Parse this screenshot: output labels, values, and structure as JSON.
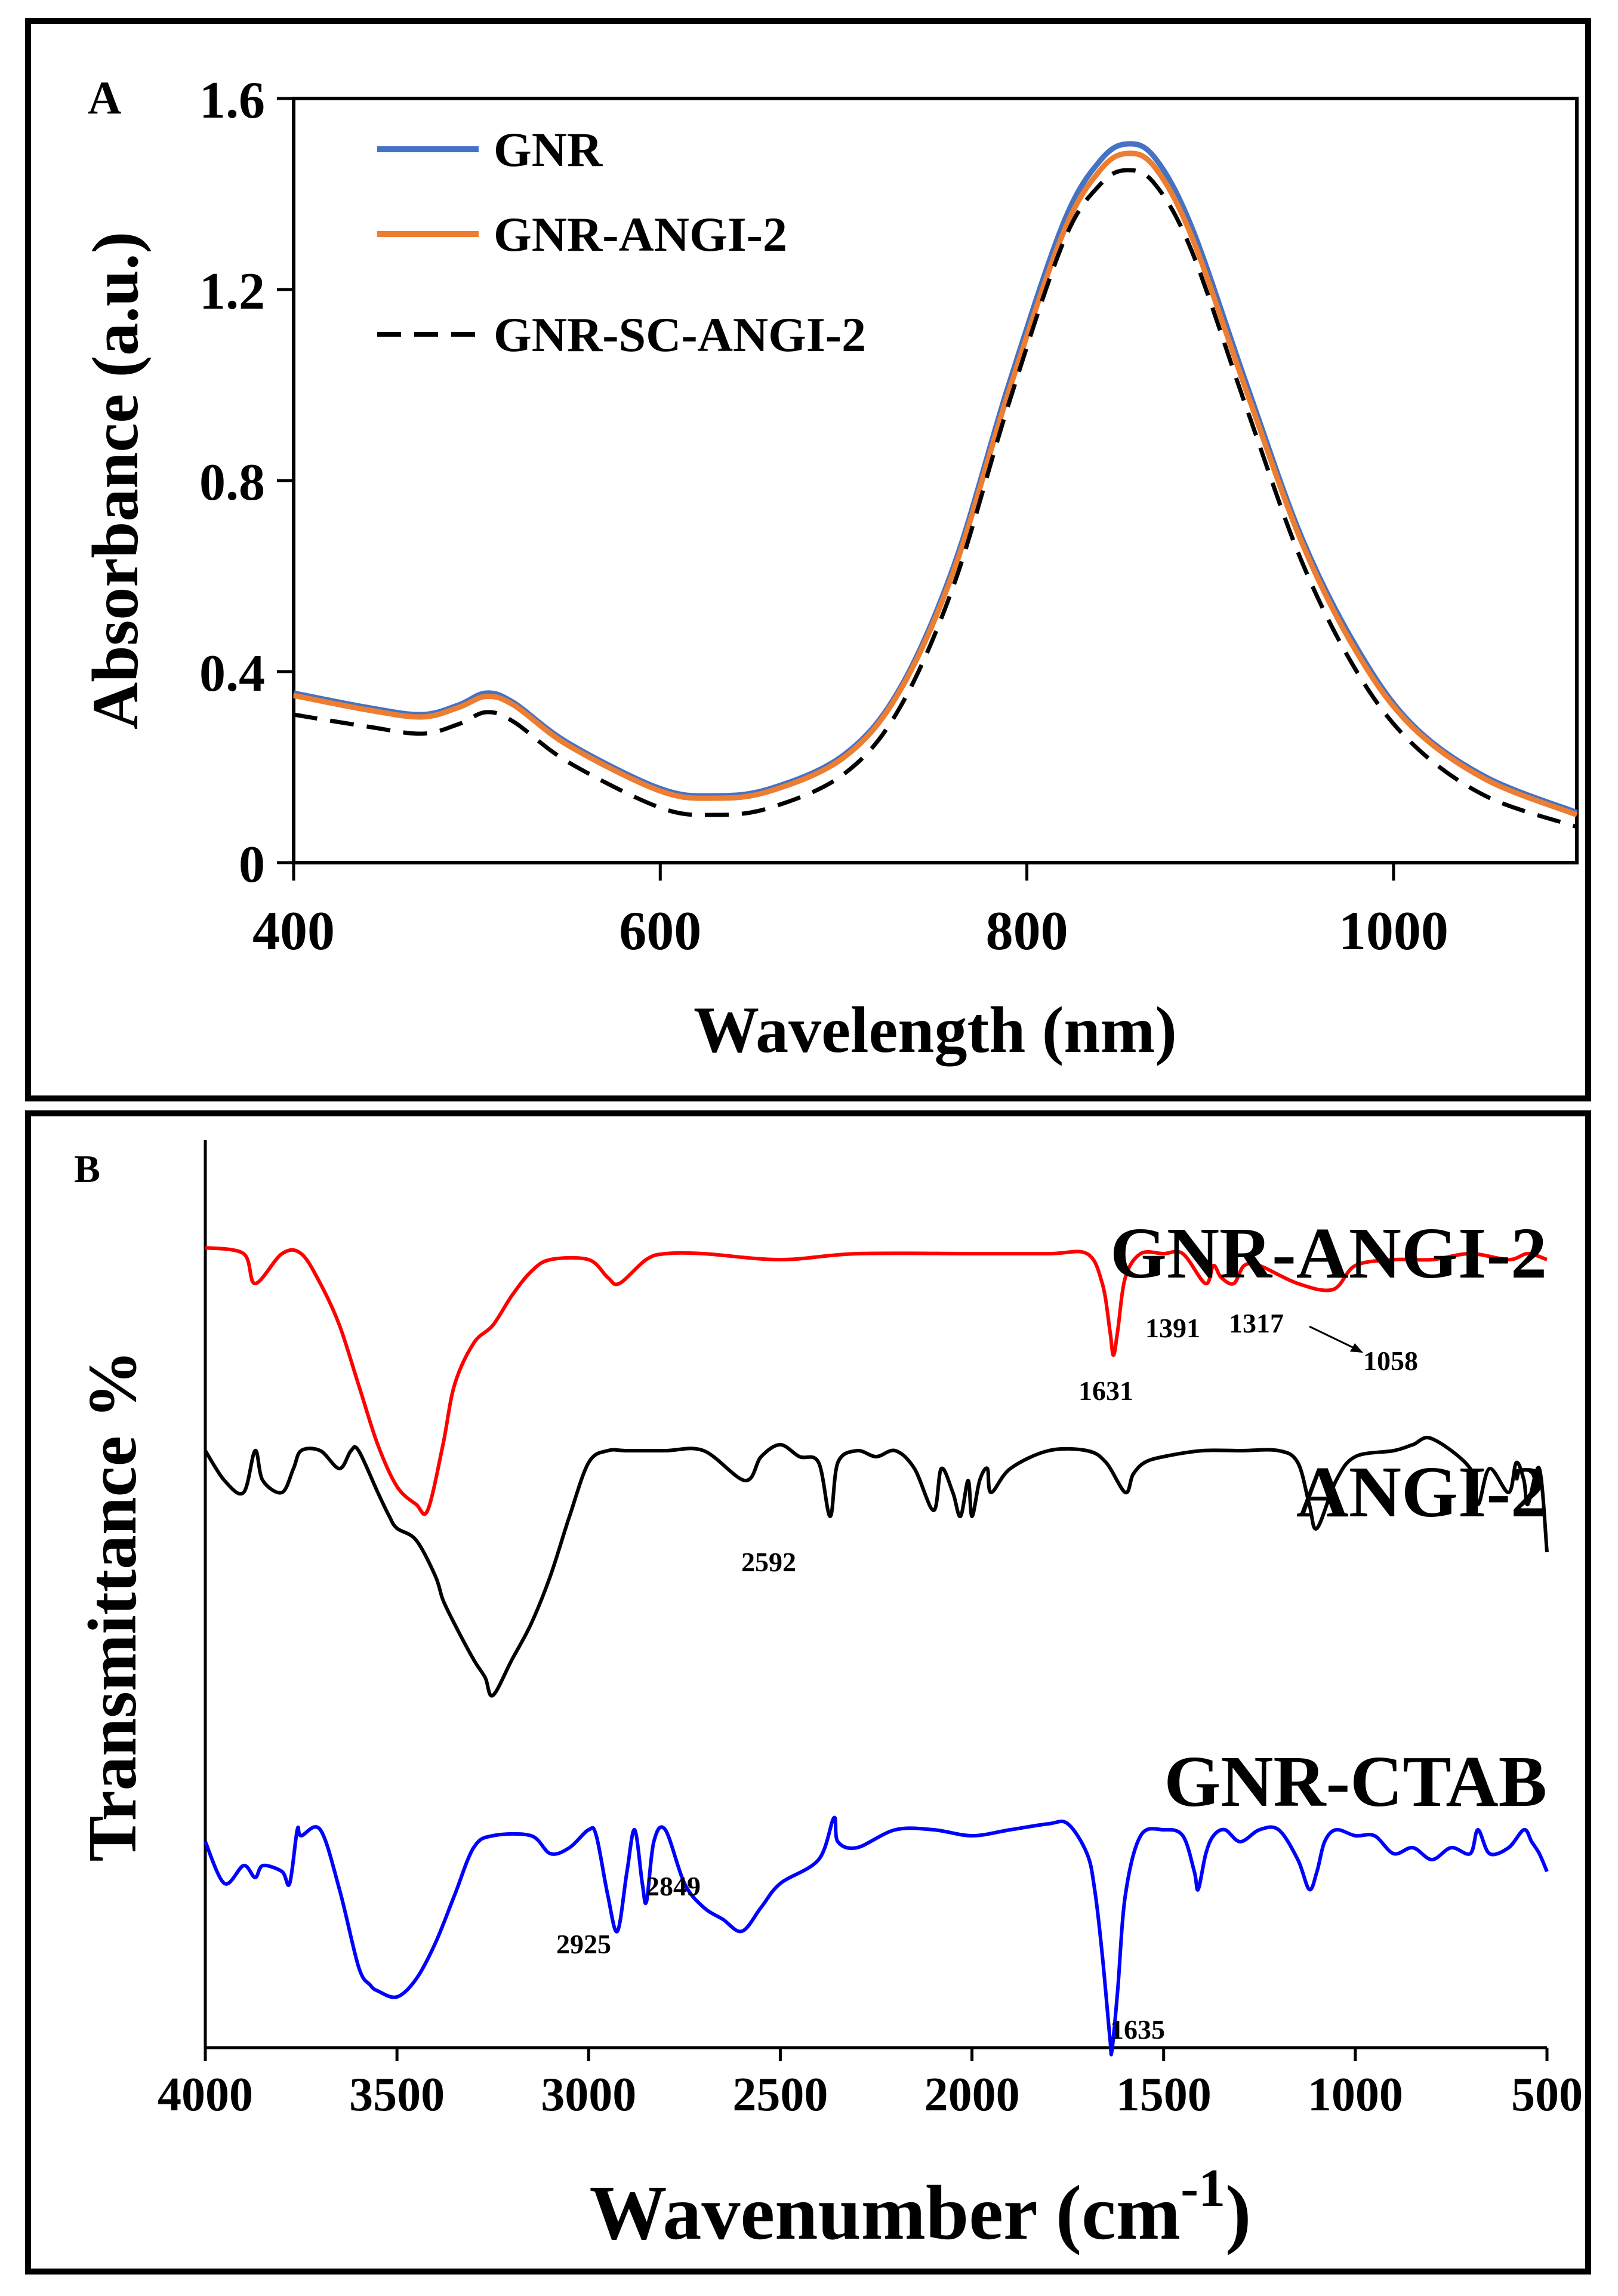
{
  "chart_data": [
    {
      "panel": "A",
      "type": "line",
      "xlabel": "Wavelength (nm)",
      "ylabel": "Absorbance (a.u.)",
      "xlim": [
        400,
        1100
      ],
      "ylim": [
        0,
        1.6
      ],
      "xticks": [
        "400",
        "600",
        "800",
        "1000"
      ],
      "xtick_values": [
        400,
        600,
        800,
        1000
      ],
      "yticks": [
        "0",
        "0.4",
        "0.8",
        "1.2",
        "1.6"
      ],
      "ytick_values": [
        0,
        0.4,
        0.8,
        1.2,
        1.6
      ],
      "legend_position": "top-left",
      "series": [
        {
          "name": "GNR",
          "color": "#4472c4",
          "dash": "solid",
          "x": [
            400,
            440,
            470,
            490,
            505,
            520,
            550,
            600,
            630,
            660,
            700,
            730,
            760,
            790,
            820,
            840,
            855,
            870,
            890,
            920,
            950,
            980,
            1010,
            1050,
            1100
          ],
          "y": [
            0.355,
            0.325,
            0.31,
            0.33,
            0.355,
            0.335,
            0.25,
            0.155,
            0.14,
            0.155,
            0.225,
            0.36,
            0.62,
            1.0,
            1.34,
            1.47,
            1.505,
            1.475,
            1.33,
            1.0,
            0.68,
            0.45,
            0.29,
            0.18,
            0.105
          ]
        },
        {
          "name": "GNR-ANGI-2",
          "color": "#ed7d31",
          "dash": "solid",
          "x": [
            400,
            440,
            470,
            490,
            505,
            520,
            550,
            600,
            630,
            660,
            700,
            730,
            760,
            790,
            820,
            840,
            855,
            870,
            890,
            920,
            950,
            980,
            1010,
            1050,
            1100
          ],
          "y": [
            0.35,
            0.32,
            0.305,
            0.325,
            0.348,
            0.33,
            0.245,
            0.15,
            0.135,
            0.15,
            0.22,
            0.355,
            0.61,
            0.985,
            1.32,
            1.45,
            1.485,
            1.455,
            1.31,
            0.985,
            0.67,
            0.44,
            0.285,
            0.175,
            0.1
          ]
        },
        {
          "name": "GNR-SC-ANGI-2",
          "color": "#000000",
          "dash": "dashed",
          "x": [
            400,
            440,
            470,
            490,
            505,
            520,
            550,
            600,
            630,
            660,
            700,
            730,
            760,
            790,
            820,
            840,
            855,
            870,
            890,
            920,
            950,
            980,
            1010,
            1050,
            1100
          ],
          "y": [
            0.31,
            0.285,
            0.27,
            0.29,
            0.315,
            0.295,
            0.21,
            0.115,
            0.1,
            0.115,
            0.185,
            0.32,
            0.58,
            0.96,
            1.3,
            1.42,
            1.45,
            1.42,
            1.28,
            0.95,
            0.63,
            0.4,
            0.25,
            0.14,
            0.075
          ]
        }
      ]
    },
    {
      "panel": "B",
      "type": "line",
      "xlabel": "Wavenumber (cm",
      "xlabel_sup": "-1",
      "xlabel_close": ")",
      "ylabel": "Transmittance %",
      "xlim": [
        4000,
        500
      ],
      "xticks": [
        "4000",
        "3500",
        "3000",
        "2500",
        "2000",
        "1500",
        "1000",
        "500"
      ],
      "xtick_values": [
        4000,
        3500,
        3000,
        2500,
        2000,
        1500,
        1000,
        500
      ],
      "series": [
        {
          "name": "GNR-ANGI-2",
          "color": "#ff0000",
          "x": [
            4000,
            3900,
            3870,
            3800,
            3750,
            3700,
            3650,
            3600,
            3550,
            3500,
            3450,
            3420,
            3380,
            3350,
            3300,
            3250,
            3200,
            3150,
            3100,
            3000,
            2950,
            2920,
            2850,
            2800,
            2700,
            2500,
            2300,
            2000,
            1800,
            1700,
            1660,
            1640,
            1631,
            1620,
            1600,
            1560,
            1500,
            1450,
            1391,
            1370,
            1350,
            1317,
            1290,
            1250,
            1150,
            1058,
            1000,
            900,
            800,
            700,
            600,
            550,
            500
          ],
          "y": [
            98,
            97,
            92,
            97,
            97,
            92,
            85,
            75,
            65,
            58,
            55,
            54,
            65,
            75,
            82,
            85,
            90,
            94,
            96,
            96,
            93,
            92,
            96,
            97,
            97,
            96,
            97,
            97,
            97,
            97,
            92,
            84,
            80,
            84,
            93,
            97,
            97,
            97,
            92,
            95,
            93,
            92,
            95,
            95,
            92,
            91,
            95,
            96,
            96,
            97,
            96,
            97,
            96
          ]
        },
        {
          "name": "ANGI-2",
          "color": "#000000",
          "x": [
            4000,
            3950,
            3900,
            3870,
            3850,
            3800,
            3770,
            3750,
            3700,
            3650,
            3620,
            3600,
            3550,
            3520,
            3500,
            3450,
            3400,
            3380,
            3350,
            3300,
            3270,
            3250,
            3200,
            3150,
            3100,
            3050,
            3000,
            2950,
            2900,
            2800,
            2700,
            2592,
            2550,
            2500,
            2450,
            2400,
            2370,
            2350,
            2300,
            2250,
            2200,
            2150,
            2100,
            2080,
            2050,
            2030,
            2010,
            2000,
            1980,
            1960,
            1950,
            1900,
            1800,
            1700,
            1650,
            1600,
            1580,
            1550,
            1500,
            1400,
            1300,
            1200,
            1150,
            1120,
            1100,
            1050,
            1000,
            900,
            850,
            800,
            700,
            680,
            650,
            600,
            580,
            560,
            550,
            520,
            500
          ],
          "y": [
            95,
            90,
            88,
            95,
            90,
            88,
            92,
            95,
            95,
            92,
            95,
            95,
            88,
            84,
            82,
            80,
            74,
            70,
            66,
            60,
            57,
            54,
            60,
            66,
            74,
            84,
            93,
            95,
            95,
            95,
            95,
            90,
            94,
            96,
            94,
            93,
            84,
            93,
            95,
            94,
            95,
            92,
            85,
            92,
            88,
            84,
            90,
            84,
            90,
            92,
            88,
            92,
            95,
            95,
            93,
            88,
            91,
            93,
            94,
            95,
            95,
            95,
            93,
            86,
            82,
            90,
            94,
            95,
            96,
            97,
            92,
            86,
            92,
            88,
            93,
            90,
            86,
            92,
            78
          ]
        },
        {
          "name": "GNR-CTAB",
          "color": "#0000ff",
          "x": [
            4000,
            3950,
            3900,
            3870,
            3850,
            3800,
            3780,
            3760,
            3750,
            3700,
            3650,
            3600,
            3570,
            3550,
            3500,
            3450,
            3400,
            3350,
            3300,
            3250,
            3150,
            3100,
            3050,
            3000,
            2980,
            2950,
            2925,
            2900,
            2880,
            2860,
            2849,
            2830,
            2800,
            2750,
            2700,
            2650,
            2600,
            2550,
            2500,
            2400,
            2360,
            2350,
            2300,
            2200,
            2100,
            2000,
            1900,
            1800,
            1750,
            1700,
            1680,
            1660,
            1640,
            1635,
            1620,
            1600,
            1560,
            1500,
            1450,
            1420,
            1410,
            1390,
            1370,
            1340,
            1300,
            1250,
            1200,
            1150,
            1120,
            1100,
            1080,
            1050,
            1000,
            950,
            900,
            850,
            800,
            750,
            700,
            680,
            650,
            600,
            560,
            540,
            520,
            500
          ],
          "y": [
            93,
            86,
            89,
            87,
            89,
            88,
            86,
            95,
            94,
            95,
            85,
            72,
            69,
            68,
            67,
            70,
            76,
            84,
            92,
            94,
            94,
            91,
            92,
            95,
            94,
            84,
            78,
            88,
            95,
            86,
            83,
            93,
            95,
            86,
            82,
            80,
            78,
            82,
            86,
            90,
            97,
            93,
            92,
            95,
            95,
            94,
            95,
            96,
            96,
            91,
            85,
            74,
            60,
            58,
            68,
            84,
            94,
            95,
            94,
            88,
            85,
            91,
            94,
            95,
            93,
            95,
            95,
            90,
            85,
            88,
            93,
            95,
            94,
            94,
            91,
            92,
            90,
            92,
            91,
            95,
            91,
            92,
            95,
            93,
            91,
            88
          ]
        }
      ],
      "series_labels": [
        "GNR-ANGI-2",
        "ANGI-2",
        "GNR-CTAB"
      ],
      "peak_labels": [
        "1631",
        "1391",
        "1317",
        "1058",
        "2592",
        "2925",
        "2849",
        "1635"
      ]
    }
  ],
  "panelA": {
    "letter": "A"
  },
  "panelB": {
    "letter": "B"
  }
}
